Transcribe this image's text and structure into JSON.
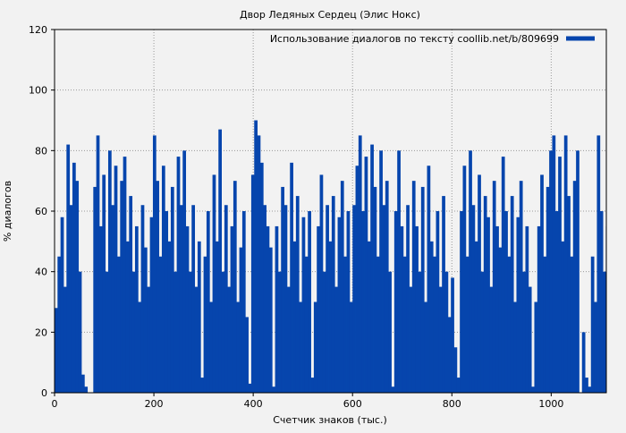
{
  "chart_data": {
    "type": "bar",
    "title": "Двор Ледяных Сердец (Элис Нокс)",
    "xlabel": "Счетчик знаков (тыс.)",
    "ylabel": "% диалогов",
    "xlim": [
      0,
      1111
    ],
    "ylim": [
      0,
      120
    ],
    "xticks": [
      0,
      200,
      400,
      600,
      800,
      1000
    ],
    "yticks": [
      0,
      20,
      40,
      60,
      80,
      100,
      120
    ],
    "grid": true,
    "legend_placement": "top-right",
    "series": [
      {
        "name": "Использование диалогов по тексту coollib.net/b/809699",
        "color": "#0645ad",
        "x": [
          0,
          6,
          12,
          18,
          24,
          30,
          36,
          42,
          48,
          54,
          60,
          66,
          72,
          78,
          84,
          90,
          96,
          102,
          108,
          114,
          120,
          126,
          132,
          138,
          144,
          150,
          156,
          162,
          168,
          174,
          180,
          186,
          192,
          198,
          204,
          210,
          216,
          222,
          228,
          234,
          240,
          246,
          252,
          258,
          264,
          270,
          276,
          282,
          288,
          294,
          300,
          306,
          312,
          318,
          324,
          330,
          336,
          342,
          348,
          354,
          360,
          366,
          372,
          378,
          384,
          390,
          396,
          402,
          408,
          414,
          420,
          426,
          432,
          438,
          444,
          450,
          456,
          462,
          468,
          474,
          480,
          486,
          492,
          498,
          504,
          510,
          516,
          522,
          528,
          534,
          540,
          546,
          552,
          558,
          564,
          570,
          576,
          582,
          588,
          594,
          600,
          606,
          612,
          618,
          624,
          630,
          636,
          642,
          648,
          654,
          660,
          666,
          672,
          678,
          684,
          690,
          696,
          702,
          708,
          714,
          720,
          726,
          732,
          738,
          744,
          750,
          756,
          762,
          768,
          774,
          780,
          786,
          792,
          798,
          804,
          810,
          816,
          822,
          828,
          834,
          840,
          846,
          852,
          858,
          864,
          870,
          876,
          882,
          888,
          894,
          900,
          906,
          912,
          918,
          924,
          930,
          936,
          942,
          948,
          954,
          960,
          966,
          972,
          978,
          984,
          990,
          996,
          1002,
          1008,
          1014,
          1020,
          1026,
          1032,
          1038,
          1044,
          1050,
          1056,
          1062,
          1068,
          1074,
          1080,
          1086,
          1092,
          1098,
          1104,
          1110
        ],
        "values": [
          28,
          45,
          58,
          35,
          82,
          62,
          76,
          70,
          40,
          6,
          2,
          0,
          0,
          68,
          85,
          55,
          72,
          40,
          80,
          62,
          75,
          45,
          70,
          78,
          50,
          65,
          40,
          55,
          30,
          62,
          48,
          35,
          58,
          85,
          70,
          45,
          75,
          60,
          50,
          68,
          40,
          78,
          62,
          80,
          55,
          40,
          62,
          35,
          50,
          5,
          45,
          60,
          30,
          72,
          50,
          87,
          40,
          62,
          35,
          55,
          70,
          30,
          48,
          60,
          25,
          3,
          72,
          90,
          85,
          76,
          62,
          55,
          48,
          2,
          55,
          40,
          68,
          62,
          35,
          76,
          50,
          65,
          30,
          58,
          45,
          60,
          5,
          30,
          55,
          72,
          40,
          62,
          50,
          65,
          35,
          58,
          70,
          45,
          60,
          30,
          62,
          75,
          85,
          60,
          78,
          50,
          82,
          68,
          45,
          80,
          62,
          70,
          40,
          2,
          60,
          80,
          55,
          45,
          62,
          35,
          70,
          55,
          40,
          68,
          30,
          75,
          50,
          45,
          60,
          35,
          65,
          40,
          25,
          38,
          15,
          5,
          60,
          75,
          45,
          80,
          62,
          50,
          72,
          40,
          65,
          58,
          35,
          70,
          55,
          48,
          78,
          60,
          45,
          65,
          30,
          58,
          70,
          40,
          55,
          35,
          2,
          30,
          55,
          72,
          45,
          68,
          80,
          85,
          60,
          78,
          50,
          85,
          65,
          45,
          70,
          80,
          0,
          20,
          5,
          2,
          45,
          30,
          85,
          60,
          40,
          55
        ]
      }
    ]
  }
}
